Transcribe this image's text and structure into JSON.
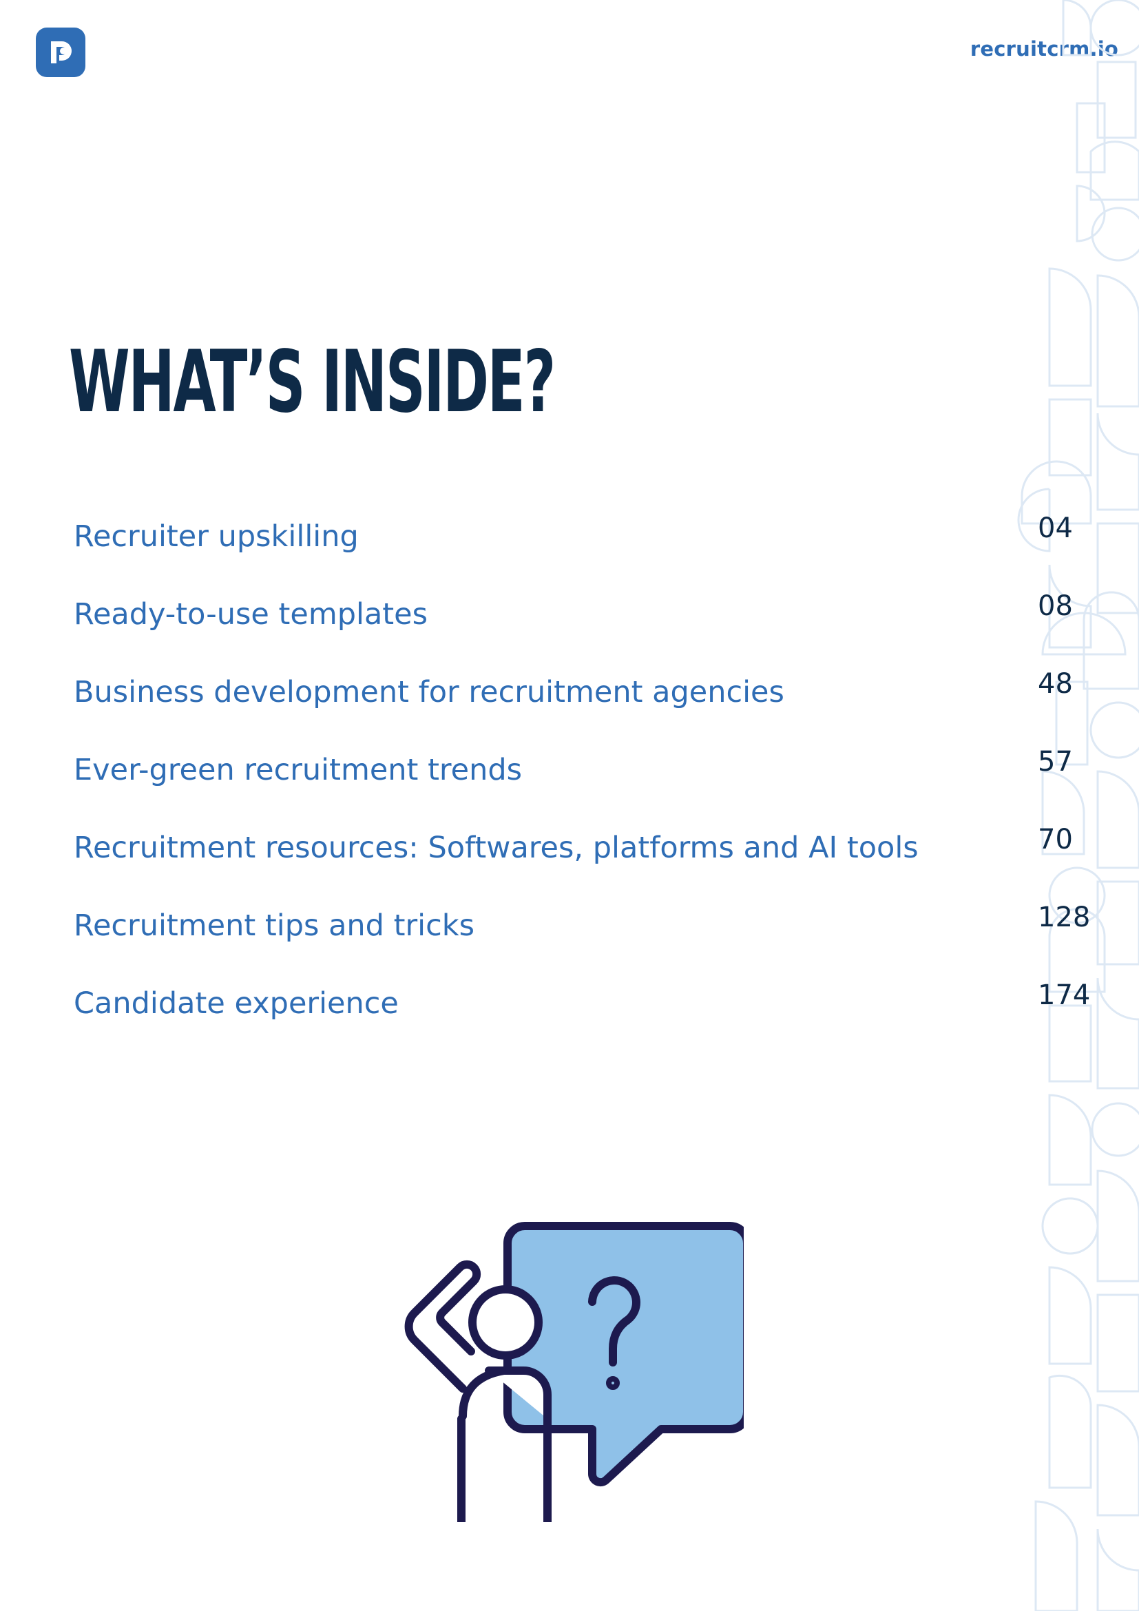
{
  "header": {
    "logo": "recruitcrm-logo-icon",
    "site": "recruitcrm.io"
  },
  "title": "WHAT’S INSIDE?",
  "toc": [
    {
      "label": "Recruiter upskilling",
      "page": "04"
    },
    {
      "label": "Ready-to-use templates",
      "page": "08"
    },
    {
      "label": "Business development for recruitment agencies",
      "page": "48"
    },
    {
      "label": "Ever-green recruitment trends",
      "page": "57"
    },
    {
      "label": "Recruitment resources: Softwares, platforms and AI tools",
      "page": "70"
    },
    {
      "label": "Recruitment tips and tricks",
      "page": "128"
    },
    {
      "label": "Candidate experience",
      "page": "174"
    }
  ],
  "illustration": "confused-person-question-icon",
  "colors": {
    "brand_blue": "#2f6db5",
    "navy": "#0e2a47",
    "light_blue": "#8fc1e8",
    "pattern": "#dde8f4"
  }
}
